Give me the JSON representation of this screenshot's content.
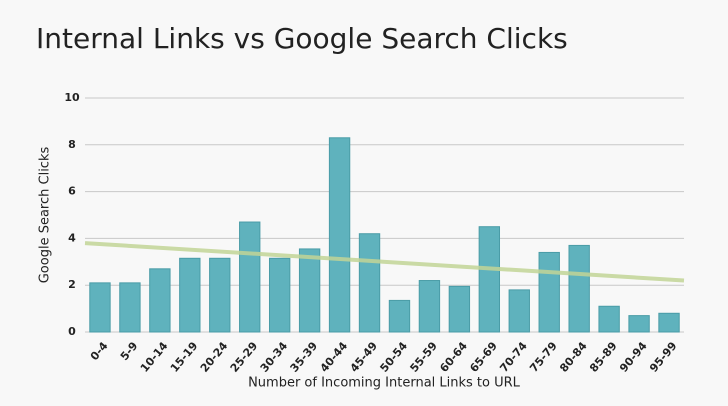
{
  "chart_data": {
    "type": "bar",
    "title": "Internal Links vs Google Search Clicks",
    "x_label": "Number of Incoming Internal Links to URL",
    "y_label": "Google Search Clicks",
    "categories": [
      "0-4",
      "5-9",
      "10-14",
      "15-19",
      "20-24",
      "25-29",
      "30-34",
      "35-39",
      "40-44",
      "45-49",
      "50-54",
      "55-59",
      "60-64",
      "65-69",
      "70-74",
      "75-79",
      "80-84",
      "85-89",
      "90-94",
      "95-99"
    ],
    "values": [
      2.1,
      2.1,
      2.7,
      3.15,
      3.15,
      4.7,
      3.15,
      3.55,
      8.3,
      4.2,
      1.35,
      2.2,
      1.95,
      4.5,
      1.8,
      3.4,
      3.7,
      1.1,
      0.7,
      0.8
    ],
    "color": "#5fb2bd",
    "trendline": {
      "start": 3.8,
      "end": 2.2,
      "color": "#c2d597"
    },
    "ylim": [
      0,
      10
    ],
    "yticks": [
      0,
      2,
      4,
      6,
      8,
      10
    ],
    "grid": true
  }
}
